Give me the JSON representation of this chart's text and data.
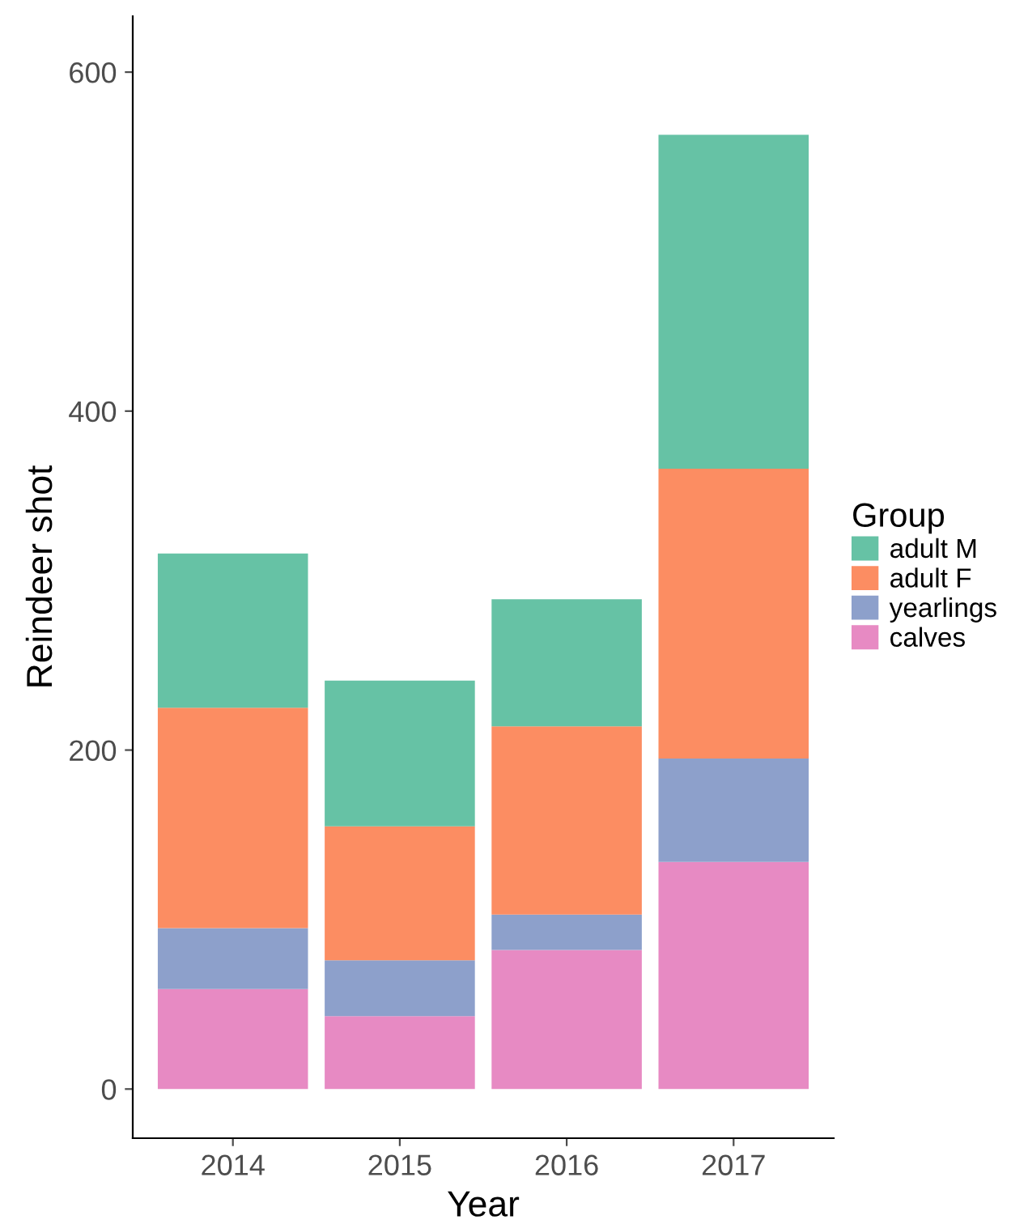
{
  "chart_data": {
    "type": "bar",
    "stacked": true,
    "xlabel": "Year",
    "ylabel": "Reindeer shot",
    "legend_title": "Group",
    "legend": "right",
    "grid": false,
    "categories": [
      "2014",
      "2015",
      "2016",
      "2017"
    ],
    "series": [
      {
        "name": "calves",
        "color": "#e78ac3",
        "values": [
          59,
          43,
          82,
          134
        ]
      },
      {
        "name": "yearlings",
        "color": "#8da0cb",
        "values": [
          36,
          33,
          21,
          61
        ]
      },
      {
        "name": "adult F",
        "color": "#fc8d62",
        "values": [
          130,
          79,
          111,
          171
        ]
      },
      {
        "name": "adult M",
        "color": "#66c2a5",
        "values": [
          91,
          86,
          75,
          197
        ]
      }
    ],
    "ylim": [
      -29,
      633
    ],
    "yticks": [
      0,
      200,
      400,
      600
    ]
  }
}
